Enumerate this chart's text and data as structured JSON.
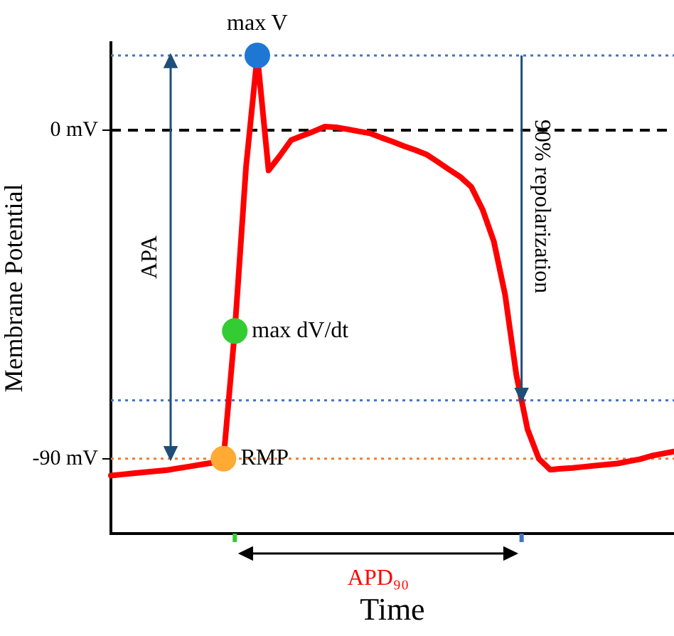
{
  "chart_data": {
    "type": "line",
    "xlabel": "Time",
    "ylabel": "Membrane Potential",
    "ylim": [
      -110.5,
      24
    ],
    "yticks": [
      {
        "value": 0,
        "label": "0 mV"
      },
      {
        "value": -90,
        "label": "-90 mV"
      }
    ],
    "categories": [
      null,
      null,
      null,
      null,
      null,
      null,
      null,
      null,
      null,
      null,
      null,
      null,
      null,
      null,
      null,
      null,
      null,
      null,
      null,
      null,
      null,
      null,
      null,
      null,
      null,
      null,
      null,
      null,
      null,
      null,
      null,
      null,
      null,
      null,
      null,
      null,
      null,
      null,
      null,
      null,
      null,
      null,
      null,
      null,
      null,
      null,
      null,
      null,
      null,
      null,
      null
    ],
    "tick_labels": "y",
    "grid": false,
    "legend": false,
    "series": [
      {
        "color": "#ff0000",
        "values": [
          -94.6,
          -94.3,
          -94,
          -93.7,
          -93.4,
          -93.1,
          -92.6,
          -92.1,
          -91.6,
          -91.1,
          -90,
          -55,
          -10,
          20.5,
          -11,
          -7,
          -2.7,
          -1.5,
          -0.3,
          1,
          0.8,
          0.3,
          -0.3,
          -0.8,
          -2,
          -3.1,
          -4.3,
          -5.4,
          -6.6,
          -8.6,
          -10.7,
          -12.7,
          -15.5,
          -21.7,
          -30.4,
          -45,
          -67,
          -82,
          -90,
          -93,
          -92.7,
          -92.5,
          -92.2,
          -91.9,
          -91.6,
          -91.3,
          -90.7,
          -90.1,
          -89.2,
          -88.6,
          -88
        ],
        "colors": [
          null,
          null,
          null,
          null,
          null,
          null,
          null,
          null,
          null,
          null,
          "#ffaa33",
          "#33cc33",
          null,
          "#1f77d4",
          null,
          null,
          null,
          null,
          null,
          null,
          null,
          null,
          null,
          null,
          null,
          null,
          null,
          null,
          null,
          null,
          null,
          null,
          null,
          null,
          null,
          null,
          null,
          null,
          null,
          null,
          null,
          null,
          null,
          null,
          null,
          null,
          null,
          null,
          null,
          null,
          null
        ]
      }
    ],
    "ref_lines": [
      {
        "axis": "y",
        "value": 0,
        "color": "#000000",
        "line_style": "dashed"
      },
      {
        "axis": "y",
        "value": 20.5,
        "color": "#4472c4",
        "line_style": "dotted"
      },
      {
        "axis": "y",
        "value": -74,
        "color": "#4472c4",
        "line_style": "dotted"
      },
      {
        "axis": "y",
        "value": -90,
        "color": "#ed7d31",
        "line_style": "dotted"
      }
    ],
    "annotations": [
      {
        "text": "max V",
        "y": 20.5
      },
      "max dV/dt",
      {
        "text": "RMP",
        "y": -90
      },
      "APA",
      "90% repolarization",
      "APD₉₀"
    ]
  }
}
